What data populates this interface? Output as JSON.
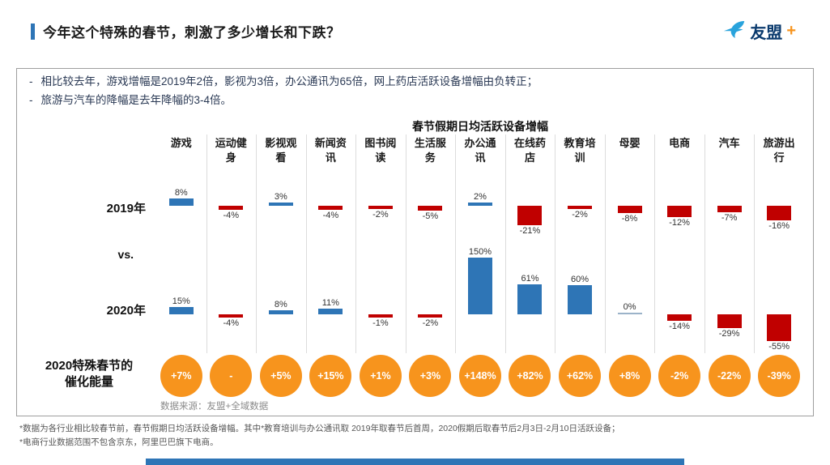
{
  "page": {
    "title": "今年这个特殊的春节，刺激了多少增长和下跌？",
    "logo": {
      "brand": "友盟",
      "plus": "+"
    }
  },
  "summary": {
    "bullets": [
      "相比较去年，游戏增幅是2019年2倍，影视为3倍，办公通讯为65倍，网上药店活跃设备增幅由负转正；",
      "旅游与汽车的降幅是去年降幅的3-4倍。"
    ]
  },
  "chart_data": {
    "type": "bar",
    "title": "春节假期日均活跃设备增幅",
    "categories": [
      "游戏",
      "运动健身",
      "影视观看",
      "新闻资讯",
      "图书阅读",
      "生活服务",
      "办公通讯",
      "在线药店",
      "教育培训",
      "母婴",
      "电商",
      "汽车",
      "旅游出行"
    ],
    "series": [
      {
        "name": "2019年",
        "values": [
          8,
          -4,
          3,
          -4,
          -2,
          -5,
          2,
          -21,
          -2,
          -8,
          -12,
          -7,
          -16
        ],
        "labels": [
          "8%",
          "-4%",
          "3%",
          "-4%",
          "-2%",
          "-5%",
          "2%",
          "-21%",
          "-2%",
          "-8%",
          "-12%",
          "-7%",
          "-16%"
        ]
      },
      {
        "name": "2020年",
        "values": [
          15,
          -4,
          8,
          11,
          -1,
          -2,
          150,
          61,
          60,
          0,
          -14,
          -29,
          -55
        ],
        "labels": [
          "15%",
          "-4%",
          "8%",
          "11%",
          "-1%",
          "-2%",
          "150%",
          "61%",
          "60%",
          "0%",
          "-14%",
          "-29%",
          "-55%"
        ]
      }
    ],
    "vs_label": "vs.",
    "catalyst_row": {
      "label_line1": "2020特殊春节的",
      "label_line2": "催化能量",
      "values": [
        "+7%",
        "-",
        "+5%",
        "+15%",
        "+1%",
        "+3%",
        "+148%",
        "+82%",
        "+62%",
        "+8%",
        "-2%",
        "-22%",
        "-39%"
      ]
    },
    "colors": {
      "positive": "#2e75b6",
      "negative": "#c00000",
      "zero": "#9bb3c9",
      "catalyst": "#f7941d"
    },
    "source": "数据来源：友盟+全域数据",
    "legend_position": "none",
    "grid": false,
    "ylim_2019": [
      -25,
      12
    ],
    "ylim_2020": [
      -60,
      160
    ]
  },
  "footnotes": [
    "*数据为各行业相比较春节前，春节假期日均活跃设备增幅。其中*教育培训与办公通讯取 2019年取春节后首周，2020假期后取春节后2月3日-2月10日活跃设备；",
    "*电商行业数据范围不包含京东，阿里巴巴旗下电商。"
  ]
}
